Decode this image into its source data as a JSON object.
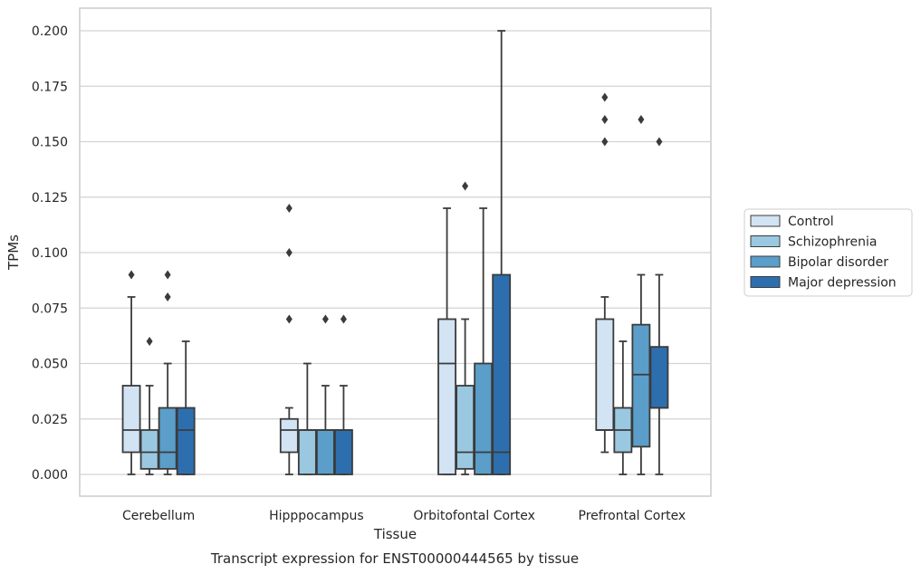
{
  "chart_data": {
    "type": "boxplot",
    "title": "",
    "xlabel": "Tissue",
    "ylabel": "TPMs",
    "caption": "Transcript expression for ENST00000444565 by tissue",
    "ylim": [
      -0.01,
      0.21
    ],
    "yticks": [
      "0.000",
      "0.025",
      "0.050",
      "0.075",
      "0.100",
      "0.125",
      "0.150",
      "0.175",
      "0.200"
    ],
    "grid": true,
    "legend_position": "right",
    "categories": [
      "Cerebellum",
      "Hipppocampus",
      "Orbitofontal Cortex",
      "Prefrontal Cortex"
    ],
    "series": [
      {
        "name": "Control",
        "color": "#d2e3f3",
        "boxes": [
          {
            "whislo": 0.0,
            "q1": 0.01,
            "med": 0.02,
            "q3": 0.04,
            "whishi": 0.08,
            "fliers": [
              0.09
            ]
          },
          {
            "whislo": 0.0,
            "q1": 0.01,
            "med": 0.02,
            "q3": 0.025,
            "whishi": 0.03,
            "fliers": [
              0.07,
              0.1,
              0.12
            ]
          },
          {
            "whislo": 0.0,
            "q1": 0.0,
            "med": 0.05,
            "q3": 0.07,
            "whishi": 0.12,
            "fliers": []
          },
          {
            "whislo": 0.01,
            "q1": 0.02,
            "med": 0.02,
            "q3": 0.07,
            "whishi": 0.08,
            "fliers": [
              0.15,
              0.16,
              0.17
            ]
          }
        ]
      },
      {
        "name": "Schizophrenia",
        "color": "#9ac8e0",
        "boxes": [
          {
            "whislo": 0.0,
            "q1": 0.0025,
            "med": 0.01,
            "q3": 0.02,
            "whishi": 0.04,
            "fliers": [
              0.06
            ]
          },
          {
            "whislo": 0.0,
            "q1": 0.0,
            "med": 0.02,
            "q3": 0.02,
            "whishi": 0.05,
            "fliers": []
          },
          {
            "whislo": 0.0,
            "q1": 0.0025,
            "med": 0.01,
            "q3": 0.04,
            "whishi": 0.07,
            "fliers": [
              0.13
            ]
          },
          {
            "whislo": 0.0,
            "q1": 0.01,
            "med": 0.02,
            "q3": 0.03,
            "whishi": 0.06,
            "fliers": []
          }
        ]
      },
      {
        "name": "Bipolar disorder",
        "color": "#5a9ec9",
        "boxes": [
          {
            "whislo": 0.0,
            "q1": 0.0025,
            "med": 0.01,
            "q3": 0.03,
            "whishi": 0.05,
            "fliers": [
              0.08,
              0.09
            ]
          },
          {
            "whislo": 0.0,
            "q1": 0.0,
            "med": 0.02,
            "q3": 0.02,
            "whishi": 0.04,
            "fliers": [
              0.07
            ]
          },
          {
            "whislo": 0.0,
            "q1": 0.0,
            "med": 0.01,
            "q3": 0.05,
            "whishi": 0.12,
            "fliers": []
          },
          {
            "whislo": 0.0,
            "q1": 0.0125,
            "med": 0.045,
            "q3": 0.0675,
            "whishi": 0.09,
            "fliers": [
              0.16
            ]
          }
        ]
      },
      {
        "name": "Major depression",
        "color": "#2d6fae",
        "boxes": [
          {
            "whislo": 0.0,
            "q1": 0.0,
            "med": 0.02,
            "q3": 0.03,
            "whishi": 0.06,
            "fliers": []
          },
          {
            "whislo": 0.0,
            "q1": 0.0,
            "med": 0.02,
            "q3": 0.02,
            "whishi": 0.04,
            "fliers": [
              0.07
            ]
          },
          {
            "whislo": 0.0,
            "q1": 0.0,
            "med": 0.01,
            "q3": 0.09,
            "whishi": 0.2,
            "fliers": []
          },
          {
            "whislo": 0.0,
            "q1": 0.03,
            "med": 0.03,
            "q3": 0.0575,
            "whishi": 0.09,
            "fliers": [
              0.15
            ]
          }
        ]
      }
    ]
  }
}
